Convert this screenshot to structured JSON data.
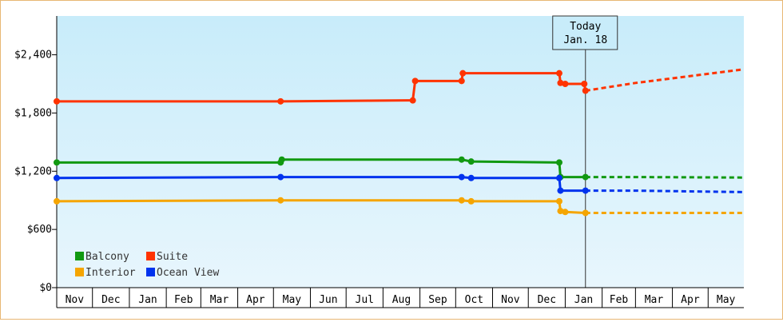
{
  "chart_data": {
    "type": "line",
    "title": "",
    "xlabel": "",
    "ylabel": "",
    "ylim": [
      0,
      2800
    ],
    "yticks": [
      0,
      600,
      1200,
      1800,
      2400
    ],
    "ytick_labels": [
      "$0",
      "$600",
      "$1,200",
      "$1,800",
      "$2,400"
    ],
    "xlim": [
      "2019-11-01",
      "2021-05-31"
    ],
    "x_month_labels": [
      "Nov",
      "Dec",
      "Jan",
      "Feb",
      "Mar",
      "Apr",
      "May",
      "Jun",
      "Jul",
      "Aug",
      "Sep",
      "Oct",
      "Nov",
      "Dec",
      "Jan",
      "Feb",
      "Mar",
      "Apr",
      "May"
    ],
    "x_month_starts": [
      "2019-11-01",
      "2019-12-01",
      "2020-01-01",
      "2020-02-01",
      "2020-03-01",
      "2020-04-01",
      "2020-05-01",
      "2020-06-01",
      "2020-07-01",
      "2020-08-01",
      "2020-09-01",
      "2020-10-01",
      "2020-11-01",
      "2020-12-01",
      "2021-01-01",
      "2021-02-01",
      "2021-03-01",
      "2021-04-01",
      "2021-05-01"
    ],
    "today": {
      "date": "2021-01-18",
      "label_line1": "Today",
      "label_line2": "Jan. 18"
    },
    "legend": {
      "placement": "bottom-left",
      "columns": 2
    },
    "background": {
      "top": "#c8ecfa",
      "bottom": "#e8f6fd"
    },
    "series": [
      {
        "name": "Balcony",
        "color": "#119911",
        "points": [
          {
            "x": "2019-11-01",
            "y": 1290,
            "m": 1
          },
          {
            "x": "2020-05-07",
            "y": 1290,
            "m": 1
          },
          {
            "x": "2020-05-08",
            "y": 1320,
            "m": 1
          },
          {
            "x": "2020-10-06",
            "y": 1320,
            "m": 1
          },
          {
            "x": "2020-10-14",
            "y": 1300,
            "m": 1
          },
          {
            "x": "2020-12-27",
            "y": 1290,
            "m": 1
          },
          {
            "x": "2020-12-28",
            "y": 1140,
            "m": 1
          },
          {
            "x": "2021-01-18",
            "y": 1140,
            "m": 1
          }
        ],
        "forecast": [
          {
            "x": "2021-01-18",
            "y": 1140
          },
          {
            "x": "2021-03-01",
            "y": 1140
          },
          {
            "x": "2021-05-31",
            "y": 1135
          }
        ]
      },
      {
        "name": "Suite",
        "color": "#ff3300",
        "points": [
          {
            "x": "2019-11-01",
            "y": 1920,
            "m": 1
          },
          {
            "x": "2020-05-07",
            "y": 1920,
            "m": 1
          },
          {
            "x": "2020-08-26",
            "y": 1930,
            "m": 1
          },
          {
            "x": "2020-08-28",
            "y": 2130,
            "m": 1
          },
          {
            "x": "2020-10-06",
            "y": 2130,
            "m": 1
          },
          {
            "x": "2020-10-07",
            "y": 2210,
            "m": 1
          },
          {
            "x": "2020-12-27",
            "y": 2210,
            "m": 1
          },
          {
            "x": "2020-12-28",
            "y": 2110,
            "m": 1
          },
          {
            "x": "2021-01-01",
            "y": 2100,
            "m": 1
          },
          {
            "x": "2021-01-17",
            "y": 2100,
            "m": 1
          },
          {
            "x": "2021-01-18",
            "y": 2030,
            "m": 1
          }
        ],
        "forecast": [
          {
            "x": "2021-01-18",
            "y": 2030
          },
          {
            "x": "2021-03-01",
            "y": 2110
          },
          {
            "x": "2021-05-31",
            "y": 2250
          }
        ]
      },
      {
        "name": "Interior",
        "color": "#f5a500",
        "points": [
          {
            "x": "2019-11-01",
            "y": 890,
            "m": 1
          },
          {
            "x": "2020-05-07",
            "y": 900,
            "m": 1
          },
          {
            "x": "2020-10-06",
            "y": 900,
            "m": 1
          },
          {
            "x": "2020-10-14",
            "y": 890,
            "m": 1
          },
          {
            "x": "2020-12-27",
            "y": 890,
            "m": 1
          },
          {
            "x": "2020-12-28",
            "y": 790,
            "m": 1
          },
          {
            "x": "2021-01-01",
            "y": 780,
            "m": 1
          },
          {
            "x": "2021-01-18",
            "y": 770,
            "m": 1
          }
        ],
        "forecast": [
          {
            "x": "2021-01-18",
            "y": 770
          },
          {
            "x": "2021-05-31",
            "y": 770
          }
        ]
      },
      {
        "name": "Ocean View",
        "color": "#0033ee",
        "points": [
          {
            "x": "2019-11-01",
            "y": 1130,
            "m": 1
          },
          {
            "x": "2020-05-07",
            "y": 1140,
            "m": 1
          },
          {
            "x": "2020-10-06",
            "y": 1140,
            "m": 1
          },
          {
            "x": "2020-10-14",
            "y": 1130,
            "m": 1
          },
          {
            "x": "2020-12-27",
            "y": 1130,
            "m": 1
          },
          {
            "x": "2020-12-28",
            "y": 1000,
            "m": 1
          },
          {
            "x": "2021-01-18",
            "y": 1000,
            "m": 1
          }
        ],
        "forecast": [
          {
            "x": "2021-01-18",
            "y": 1000
          },
          {
            "x": "2021-03-01",
            "y": 1000
          },
          {
            "x": "2021-05-31",
            "y": 985
          }
        ]
      }
    ]
  }
}
